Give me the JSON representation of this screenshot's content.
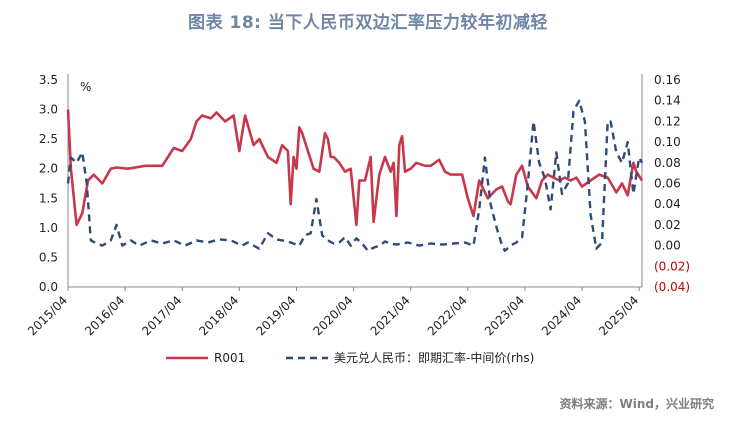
{
  "title": "图表 18: 当下人民币双边汇率压力较年初减轻",
  "source": "资料来源：Wind，兴业研究",
  "colors": {
    "r001": "#c8374a",
    "fx": "#2f4b75",
    "title": "#6f86a6",
    "negative": "#c00000"
  },
  "chart_data": {
    "type": "line",
    "title": "图表 18: 当下人民币双边汇率压力较年初减轻",
    "y_unit_label": "%",
    "x_tick_labels": [
      "2015/04",
      "2016/04",
      "2017/04",
      "2018/04",
      "2019/04",
      "2020/04",
      "2021/04",
      "2022/04",
      "2023/04",
      "2024/04",
      "2025/04"
    ],
    "y_left": {
      "range": [
        0,
        3.5
      ],
      "ticks": [
        0,
        0.5,
        1,
        1.5,
        2,
        2.5,
        3,
        3.5
      ],
      "tick_labels": [
        "0.0",
        "0.5",
        "1.0",
        "1.5",
        "2.0",
        "2.5",
        "3.0",
        "3.5"
      ]
    },
    "y_right": {
      "range": [
        -0.04,
        0.16
      ],
      "ticks": [
        -0.04,
        -0.02,
        0,
        0.02,
        0.04,
        0.06,
        0.08,
        0.1,
        0.12,
        0.14,
        0.16
      ],
      "tick_labels": [
        "(0.04)",
        "(0.02)",
        "0.00",
        "0.02",
        "0.04",
        "0.06",
        "0.08",
        "0.10",
        "0.12",
        "0.14",
        "0.16"
      ]
    },
    "legend_position": "bottom",
    "series": [
      {
        "name": "R001",
        "axis": "left",
        "style": "solid",
        "x": [
          2015.25,
          2015.3,
          2015.4,
          2015.5,
          2015.6,
          2015.7,
          2015.85,
          2016.0,
          2016.1,
          2016.3,
          2016.6,
          2016.9,
          2017.0,
          2017.1,
          2017.25,
          2017.4,
          2017.5,
          2017.6,
          2017.75,
          2017.85,
          2018.0,
          2018.15,
          2018.25,
          2018.35,
          2018.5,
          2018.6,
          2018.75,
          2018.9,
          2019.0,
          2019.1,
          2019.15,
          2019.2,
          2019.25,
          2019.3,
          2019.35,
          2019.45,
          2019.55,
          2019.65,
          2019.75,
          2019.8,
          2019.85,
          2019.9,
          2020.0,
          2020.1,
          2020.2,
          2020.3,
          2020.35,
          2020.45,
          2020.55,
          2020.6,
          2020.7,
          2020.8,
          2020.9,
          2020.95,
          2021.0,
          2021.05,
          2021.1,
          2021.15,
          2021.25,
          2021.35,
          2021.5,
          2021.6,
          2021.75,
          2021.85,
          2021.95,
          2022.0,
          2022.15,
          2022.25,
          2022.35,
          2022.45,
          2022.6,
          2022.75,
          2022.85,
          2022.95,
          2023.0,
          2023.1,
          2023.2,
          2023.3,
          2023.45,
          2023.55,
          2023.65,
          2023.75,
          2023.85,
          2023.95,
          2024.05,
          2024.15,
          2024.25,
          2024.4,
          2024.55,
          2024.7,
          2024.85,
          2024.95,
          2025.05,
          2025.15,
          2025.2,
          2025.3
        ],
        "values": [
          3.0,
          2.0,
          1.05,
          1.25,
          1.8,
          1.9,
          1.75,
          2.0,
          2.02,
          2.0,
          2.05,
          2.05,
          2.2,
          2.35,
          2.3,
          2.5,
          2.8,
          2.9,
          2.85,
          2.95,
          2.8,
          2.9,
          2.3,
          2.9,
          2.4,
          2.5,
          2.2,
          2.1,
          2.4,
          2.3,
          1.4,
          2.2,
          2.0,
          2.7,
          2.6,
          2.3,
          2.0,
          1.95,
          2.6,
          2.5,
          2.2,
          2.2,
          2.1,
          1.95,
          2.0,
          1.05,
          1.8,
          1.8,
          2.2,
          1.1,
          1.9,
          2.2,
          1.95,
          2.1,
          1.2,
          2.4,
          2.55,
          1.95,
          2.0,
          2.1,
          2.05,
          2.05,
          2.15,
          1.95,
          1.9,
          1.9,
          1.9,
          1.5,
          1.2,
          1.8,
          1.5,
          1.65,
          1.7,
          1.45,
          1.4,
          1.9,
          2.05,
          1.7,
          1.5,
          1.8,
          1.9,
          1.85,
          1.8,
          1.85,
          1.8,
          1.85,
          1.7,
          1.8,
          1.9,
          1.85,
          1.6,
          1.75,
          1.55,
          2.1,
          1.95,
          1.8
        ]
      },
      {
        "name": "美元兑人民币：即期汇率-中间价(rhs)",
        "axis": "right",
        "style": "dashed",
        "x": [
          2015.25,
          2015.3,
          2015.4,
          2015.5,
          2015.58,
          2015.65,
          2015.75,
          2015.85,
          2016.0,
          2016.1,
          2016.2,
          2016.35,
          2016.5,
          2016.7,
          2016.9,
          2017.1,
          2017.3,
          2017.5,
          2017.7,
          2017.9,
          2018.1,
          2018.3,
          2018.4,
          2018.6,
          2018.75,
          2018.9,
          2019.0,
          2019.15,
          2019.3,
          2019.4,
          2019.5,
          2019.6,
          2019.7,
          2019.8,
          2019.9,
          2020.0,
          2020.1,
          2020.2,
          2020.3,
          2020.4,
          2020.5,
          2020.6,
          2020.7,
          2020.8,
          2020.9,
          2021.0,
          2021.2,
          2021.4,
          2021.6,
          2021.8,
          2022.0,
          2022.2,
          2022.35,
          2022.45,
          2022.55,
          2022.65,
          2022.75,
          2022.85,
          2022.9,
          2023.0,
          2023.1,
          2023.2,
          2023.3,
          2023.4,
          2023.5,
          2023.6,
          2023.7,
          2023.8,
          2023.9,
          2024.0,
          2024.1,
          2024.2,
          2024.3,
          2024.4,
          2024.5,
          2024.6,
          2024.7,
          2024.75,
          2024.85,
          2024.95,
          2025.05,
          2025.15,
          2025.25,
          2025.3
        ],
        "values": [
          0.06,
          0.085,
          0.08,
          0.09,
          0.06,
          0.005,
          0.002,
          0.0,
          0.005,
          0.02,
          0.0,
          0.005,
          0.0,
          0.005,
          0.002,
          0.005,
          0.0,
          0.005,
          0.003,
          0.006,
          0.005,
          0.0,
          0.003,
          -0.003,
          0.012,
          0.006,
          0.005,
          0.003,
          0.0,
          0.01,
          0.012,
          0.045,
          0.01,
          0.005,
          0.002,
          0.003,
          0.008,
          0.0,
          0.007,
          0.002,
          -0.005,
          -0.002,
          0.0,
          0.004,
          0.002,
          0.001,
          0.003,
          0.0,
          0.002,
          0.001,
          0.002,
          0.003,
          0.0,
          0.035,
          0.085,
          0.04,
          0.018,
          0.0,
          -0.005,
          0.0,
          0.003,
          0.008,
          0.06,
          0.12,
          0.08,
          0.065,
          0.035,
          0.09,
          0.05,
          0.06,
          0.13,
          0.14,
          0.12,
          0.03,
          -0.003,
          0.003,
          0.12,
          0.12,
          0.09,
          0.08,
          0.1,
          0.05,
          0.085,
          0.08
        ]
      }
    ]
  },
  "legend": {
    "r001_label": "R001",
    "fx_label": "美元兑人民币：即期汇率-中间价(rhs)"
  }
}
